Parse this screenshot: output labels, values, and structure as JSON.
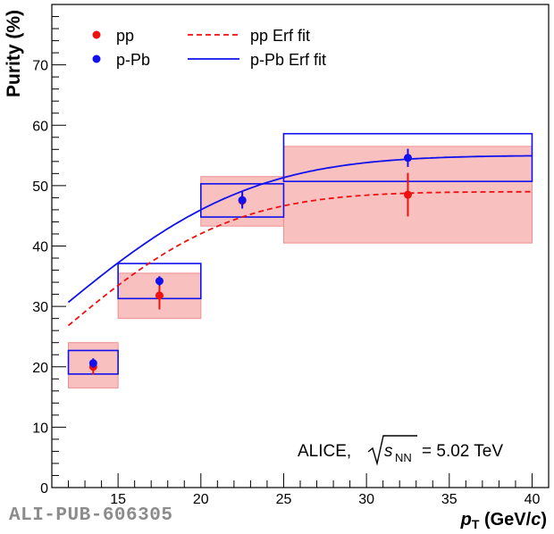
{
  "chart_data": {
    "type": "scatter",
    "title": "",
    "ylabel": "Purity (%)",
    "xlabel": {
      "main": "p",
      "sub": "T",
      "unit_open": " (GeV/",
      "unit_var": "c",
      "unit_close": ")"
    },
    "xlim": [
      11,
      41
    ],
    "ylim": [
      0,
      80
    ],
    "xticks": [
      15,
      20,
      25,
      30,
      35,
      40
    ],
    "yticks": [
      0,
      10,
      20,
      30,
      40,
      50,
      60,
      70
    ],
    "series": [
      {
        "name": "pp",
        "color": "#ee1111",
        "points": [
          {
            "x": 13.5,
            "y": 20.0,
            "yerr": 1.3,
            "xlo": 12,
            "xhi": 15,
            "sys_lo": 16.5,
            "sys_hi": 24.0
          },
          {
            "x": 17.5,
            "y": 31.8,
            "yerr": 2.3,
            "xlo": 15,
            "xhi": 20,
            "sys_lo": 28.0,
            "sys_hi": 35.5
          },
          {
            "x": 22.5,
            "y": 47.5,
            "yerr": 1.0,
            "xlo": 20,
            "xhi": 25,
            "sys_lo": 43.3,
            "sys_hi": 51.5
          },
          {
            "x": 32.5,
            "y": 48.5,
            "yerr": 3.6,
            "xlo": 25,
            "xhi": 40,
            "sys_lo": 40.5,
            "sys_hi": 56.5
          }
        ]
      },
      {
        "name": "p-Pb",
        "color": "#1111ee",
        "points": [
          {
            "x": 13.5,
            "y": 20.6,
            "yerr": 0.8,
            "xlo": 12,
            "xhi": 15,
            "sys_lo": 18.8,
            "sys_hi": 22.7
          },
          {
            "x": 17.5,
            "y": 34.2,
            "yerr": 0.8,
            "xlo": 15,
            "xhi": 20,
            "sys_lo": 31.3,
            "sys_hi": 37.1
          },
          {
            "x": 22.5,
            "y": 47.6,
            "yerr": 1.4,
            "xlo": 20,
            "xhi": 25,
            "sys_lo": 44.8,
            "sys_hi": 50.3
          },
          {
            "x": 32.5,
            "y": 54.6,
            "yerr": 1.5,
            "xlo": 25,
            "xhi": 40,
            "sys_lo": 50.7,
            "sys_hi": 58.6
          }
        ]
      }
    ],
    "fits": [
      {
        "name": "pp Erf fit",
        "color": "#ee1111",
        "style": "dashed",
        "xrange": [
          12,
          40
        ],
        "amplitude": 49.0,
        "mu": 11.0,
        "sigma": 8.4
      },
      {
        "name": "p-Pb Erf fit",
        "color": "#1111ee",
        "style": "solid",
        "xrange": [
          12,
          40
        ],
        "amplitude": 55.0,
        "mu": 10.6,
        "sigma": 9.6
      }
    ],
    "legend": {
      "placement": "top-left",
      "columns": 2
    },
    "grid": false
  },
  "annotation": {
    "experiment": "ALICE,",
    "sqrt_var": "s",
    "sqrt_sub": "NN",
    "energy": "= 5.02 TeV"
  },
  "pub_id": "ALI-PUB-606305"
}
